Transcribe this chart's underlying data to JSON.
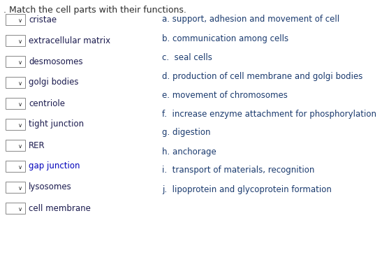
{
  "title": ". Match the cell parts with their functions.",
  "title_color": "#2d2d2d",
  "background_color": "#ffffff",
  "left_items": [
    "cristae",
    "extracellular matrix",
    "desmosomes",
    "golgi bodies",
    "centriole",
    "tight junction",
    "RER",
    "gap junction",
    "lysosomes",
    "cell membrane"
  ],
  "left_item_color": "#1a1a4e",
  "right_items": [
    "a. support, adhesion and movement of cell",
    "b. communication among cells",
    "c.  seal cells",
    "d. production of cell membrane and golgi bodies",
    "e. movement of chromosomes",
    "f.  increase enzyme attachment for phosphorylation",
    "g. digestion",
    "h. anchorage",
    "i.  transport of materials, recognition",
    "j.  lipoprotein and glycoprotein formation"
  ],
  "right_item_color": "#1a3a6e",
  "dropdown_box_color": "#ffffff",
  "dropdown_box_border": "#888888",
  "dropdown_arrow_color": "#222222",
  "special_blue_items": [
    "gap junction"
  ],
  "special_blue_color": "#0000bb",
  "font_size_title": 9.0,
  "font_size_items": 8.5,
  "font_size_arrow": 6.0
}
